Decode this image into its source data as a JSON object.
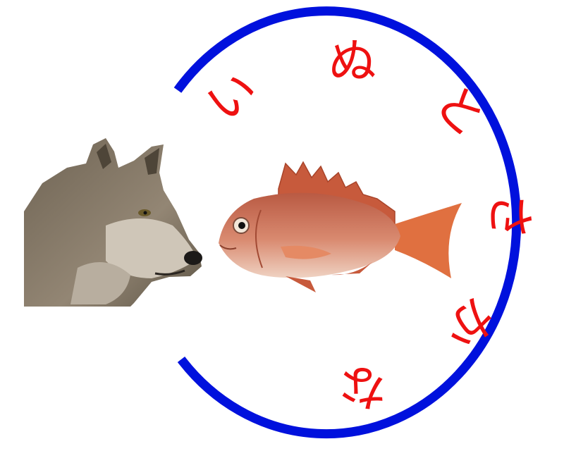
{
  "ring": {
    "color": "#0011dd"
  },
  "label": {
    "color": "#ee1111",
    "chars": [
      "い",
      "ぬ",
      "と",
      "さ",
      "か",
      "な"
    ]
  },
  "wolf": {
    "fur": "#8a7d6c",
    "fur_light": "#c9c1b4",
    "nose": "#1c1a18"
  },
  "fish": {
    "body": "#d4806a",
    "belly": "#ecc6b2",
    "fin": "#c75a3c",
    "tail": "#e07040"
  }
}
